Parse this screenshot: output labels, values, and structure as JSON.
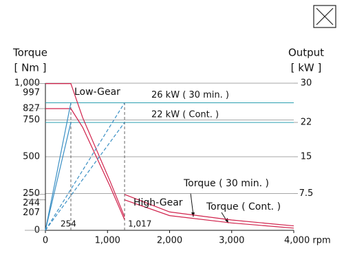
{
  "chart_data": {
    "type": "line",
    "y_title": "Torque",
    "y_unit": "[ Nm ]",
    "y2_title": "Output",
    "y2_unit": "[ kW ]",
    "xlim": [
      0,
      4000
    ],
    "xticks": [
      0,
      {
        "value": 1000,
        "label": "1,000"
      },
      {
        "value": 2000,
        "label": "2,000"
      },
      {
        "value": 3000,
        "label": "3,000"
      },
      {
        "value": 4000,
        "label": "4,000 rpm"
      }
    ],
    "ylim": [
      0,
      1000
    ],
    "yticks": [
      0,
      207,
      244,
      250,
      500,
      750,
      827,
      997,
      {
        "value": 1000,
        "label": "1,000"
      }
    ],
    "y2lim": [
      0,
      30
    ],
    "y2ticks": [
      7.5,
      15,
      22,
      30
    ],
    "series": [
      {
        "color": "#d0204a",
        "x": [
          0,
          410,
          600,
          820,
          1040,
          1275
        ],
        "values": [
          997,
          997,
          766,
          550,
          335,
          91
        ]
      },
      {
        "color": "#d0204a",
        "x": [
          0,
          410,
          600,
          820,
          1040,
          1275
        ],
        "values": [
          827,
          827,
          700,
          500,
          300,
          72
        ]
      },
      {
        "color": "#d0204a",
        "x": [
          1275,
          2000,
          3000,
          4000
        ],
        "values": [
          244,
          125,
          70,
          30
        ]
      },
      {
        "color": "#d0204a",
        "x": [
          1275,
          2000,
          3000,
          4000
        ],
        "values": [
          207,
          100,
          50,
          15
        ]
      },
      {
        "color": "#3a8fc4",
        "axis": "y2",
        "x": [
          0,
          410
        ],
        "values": [
          0,
          26
        ]
      },
      {
        "color": "#3a8fc4",
        "axis": "y2",
        "x": [
          0,
          410
        ],
        "values": [
          0,
          22
        ]
      },
      {
        "color": "#3a8fc4",
        "axis": "y2",
        "dashed": true,
        "x": [
          0,
          1275
        ],
        "values": [
          0,
          26
        ]
      },
      {
        "color": "#3a8fc4",
        "axis": "y2",
        "dashed": true,
        "x": [
          0,
          1275
        ],
        "values": [
          0,
          22
        ]
      }
    ],
    "ref_lines": [
      {
        "label": "26 kW ( 30 min. )",
        "value": 26,
        "color": "#2a9fb0"
      },
      {
        "label": "22 kW ( Cont. )",
        "value": 22,
        "color": "#2a9fb0"
      }
    ],
    "markers": [
      {
        "x": 410,
        "label": "254"
      },
      {
        "x": 1275,
        "label": "1,017"
      }
    ],
    "annotations": [
      "Low-Gear",
      "High-Gear",
      "Torque ( 30 min. )",
      "Torque ( Cont. )"
    ]
  }
}
